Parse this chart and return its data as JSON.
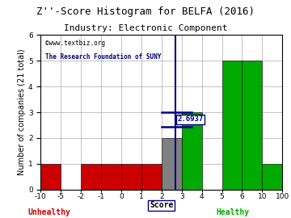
{
  "title": "Z''-Score Histogram for BELFA (2016)",
  "subtitle": "Industry: Electronic Component",
  "xlabel": "Score",
  "ylabel": "Number of companies (21 total)",
  "watermark_line1": "©www.textbiz.org",
  "watermark_line2": "The Research Foundation of SUNY",
  "bin_labels": [
    "-10",
    "-5",
    "-2",
    "-1",
    "0",
    "1",
    "2",
    "3",
    "4",
    "5",
    "6",
    "10",
    "100"
  ],
  "bar_heights": [
    1,
    0,
    1,
    1,
    1,
    1,
    2,
    3,
    0,
    5,
    5,
    1
  ],
  "bar_colors": [
    "#cc0000",
    "#cc0000",
    "#cc0000",
    "#cc0000",
    "#cc0000",
    "#cc0000",
    "#808080",
    "#00aa00",
    "#00aa00",
    "#00aa00",
    "#00aa00",
    "#00aa00"
  ],
  "zscore_line_bin": 6.6937,
  "zscore_label": "2.6937",
  "ylim": [
    0,
    6
  ],
  "yticks": [
    0,
    1,
    2,
    3,
    4,
    5,
    6
  ],
  "unhealthy_label": "Unhealthy",
  "healthy_label": "Healthy",
  "unhealthy_color": "#cc0000",
  "healthy_color": "#00aa00",
  "line_color": "#000080",
  "bg_color": "#ffffff",
  "grid_color": "#aaaaaa",
  "title_fontsize": 9,
  "axis_fontsize": 7,
  "tick_fontsize": 6.5,
  "n_bins": 12
}
